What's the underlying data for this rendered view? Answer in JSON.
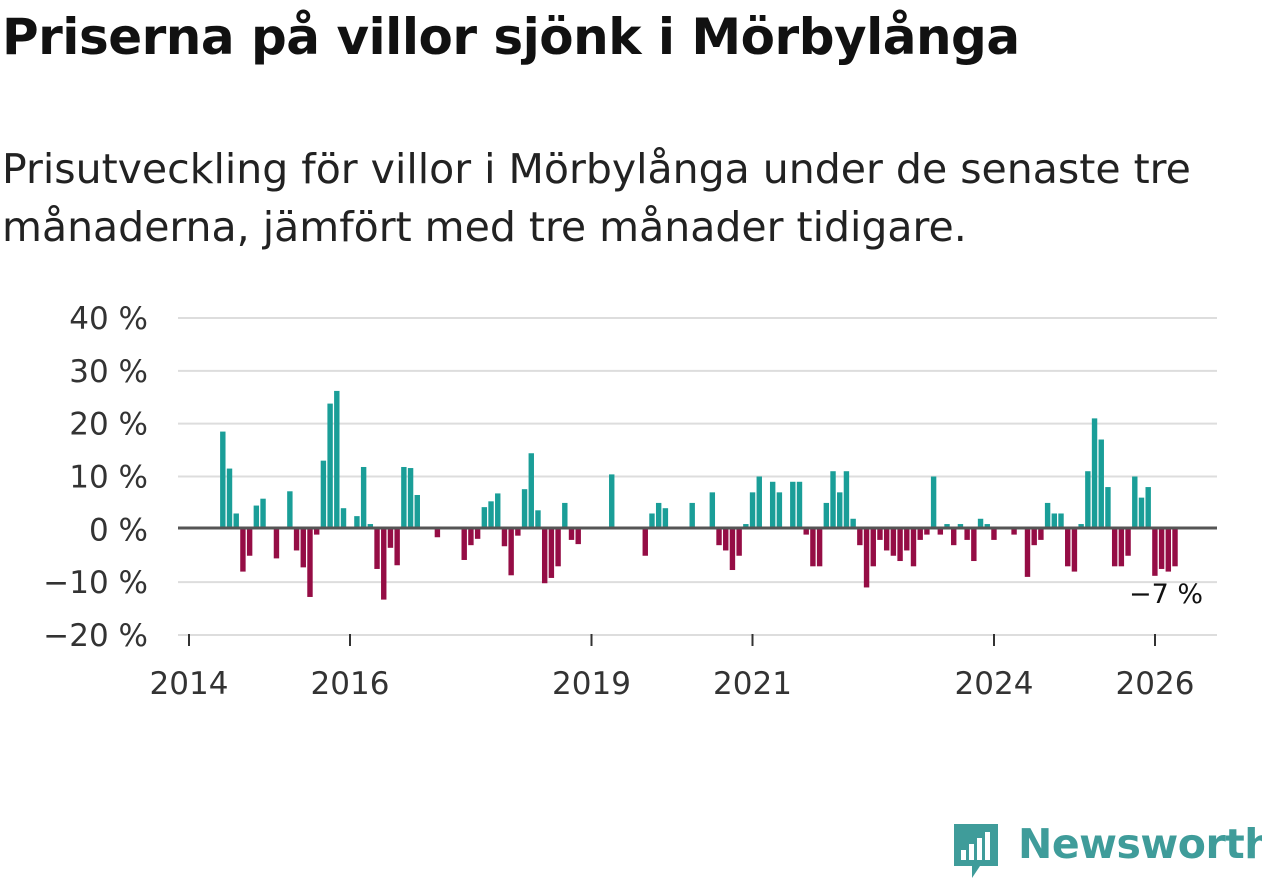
{
  "chart_data": {
    "type": "bar",
    "title": "Priserna på villor sjönk i Mörbylånga",
    "subtitle": "Prisutveckling för villor i Mörbylånga under de senaste tre månaderna, jämfört med tre månader tidigare.",
    "xlabel": "",
    "ylabel": "",
    "ylim": [
      -20,
      40
    ],
    "y_ticks": [
      -20,
      -10,
      0,
      10,
      20,
      30,
      40
    ],
    "y_tick_labels": [
      "−20 %",
      "−10 %",
      "0 %",
      "10 %",
      "20 %",
      "30 %",
      "40 %"
    ],
    "x_ticks": [
      "2014",
      "2016",
      "2019",
      "2021",
      "2024",
      "2026"
    ],
    "x_tick_positions": [
      2014.0,
      2016.0,
      2019.0,
      2021.0,
      2024.0,
      2026.0
    ],
    "x_range": [
      2013.85,
      2026.75
    ],
    "first_period": 2014.42,
    "period_step": 0.0833,
    "colors": {
      "positive": "#1a9e98",
      "negative": "#950d45"
    },
    "values": [
      18.5,
      11.5,
      3,
      -8,
      -5,
      4.5,
      5.8,
      0,
      -5.5,
      0,
      7.2,
      -4,
      -7.2,
      -12.8,
      -1,
      13,
      23.8,
      26.2,
      4,
      0,
      2.5,
      11.8,
      1,
      -7.5,
      -13.3,
      -3.5,
      -6.8,
      11.8,
      11.6,
      6.5,
      0,
      0,
      -1.5,
      0,
      0,
      0,
      -5.8,
      -3,
      -1.8,
      4.2,
      5.3,
      6.8,
      -3.2,
      -8.7,
      -1.2,
      7.6,
      14.4,
      3.6,
      -10.2,
      -9.2,
      -7,
      5,
      -2,
      -2.8,
      0,
      0,
      0,
      0,
      10.4,
      0,
      0,
      0,
      0,
      -5,
      3,
      5,
      4,
      0,
      0,
      0,
      5,
      0,
      0,
      7,
      -3,
      -4,
      -7.7,
      -5,
      1,
      7,
      10,
      0,
      9,
      7,
      0,
      9,
      9,
      -1,
      -7,
      -7,
      5,
      11,
      7,
      11,
      2,
      -3,
      -11,
      -7,
      -2,
      -4,
      -5,
      -6,
      -4,
      -7,
      -2,
      -1,
      10,
      -1,
      1,
      -3,
      1,
      -2,
      -6,
      2,
      1,
      -2,
      0,
      0,
      -1,
      0,
      -9,
      -3,
      -2,
      5,
      3,
      3,
      -7,
      -8,
      1,
      11,
      21,
      17,
      8,
      -7,
      -7,
      -5,
      10,
      6,
      8,
      -8.8,
      -7.5,
      -8,
      -7
    ],
    "annotation": {
      "label": "−7 %",
      "index": 142
    }
  },
  "brand": {
    "name": "Newsworthy",
    "icon": "bar-chart-speech-icon",
    "color": "#3f9c9a"
  }
}
